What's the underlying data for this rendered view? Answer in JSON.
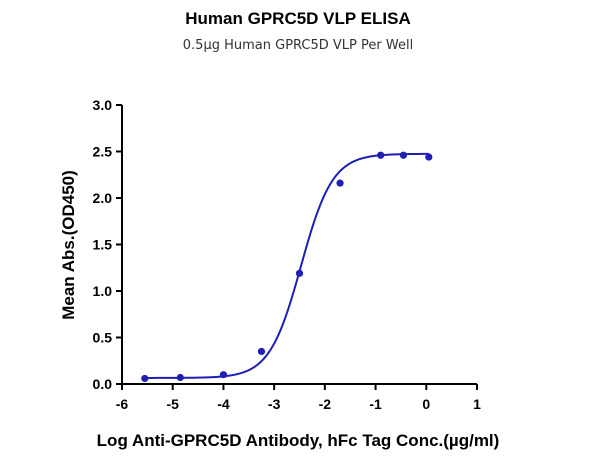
{
  "chart_data": {
    "type": "scatter",
    "title": "Human GPRC5D VLP ELISA",
    "subtitle": "0.5µg Human GPRC5D VLP Per Well",
    "xlabel": "Log Anti-GPRC5D Antibody, hFc Tag Conc.(µg/ml)",
    "ylabel": "Mean Abs.(OD450)",
    "xlim": [
      -6,
      1
    ],
    "ylim": [
      0.0,
      3.0
    ],
    "xticks": [
      -6,
      -5,
      -4,
      -3,
      -2,
      -1,
      0,
      1
    ],
    "xtick_labels": [
      "-6",
      "-5",
      "-4",
      "-3",
      "-2",
      "-1",
      "0",
      "1"
    ],
    "yticks": [
      0.0,
      0.5,
      1.0,
      1.5,
      2.0,
      2.5,
      3.0
    ],
    "ytick_labels": [
      "0.0",
      "0.5",
      "1.0",
      "1.5",
      "2.0",
      "2.5",
      "3.0"
    ],
    "grid": false,
    "series": [
      {
        "x": [
          -5.55,
          -4.85,
          -4.0,
          -3.25,
          -2.5,
          -1.7,
          -0.9,
          -0.45,
          0.05
        ],
        "y": [
          0.06,
          0.07,
          0.1,
          0.35,
          1.19,
          2.16,
          2.46,
          2.46,
          2.44
        ],
        "color": "#1f1fb4",
        "fit": {
          "model": "4PL",
          "bottom": 0.065,
          "top": 2.475,
          "logEC50": -2.47,
          "hill": 1.4
        }
      }
    ]
  }
}
